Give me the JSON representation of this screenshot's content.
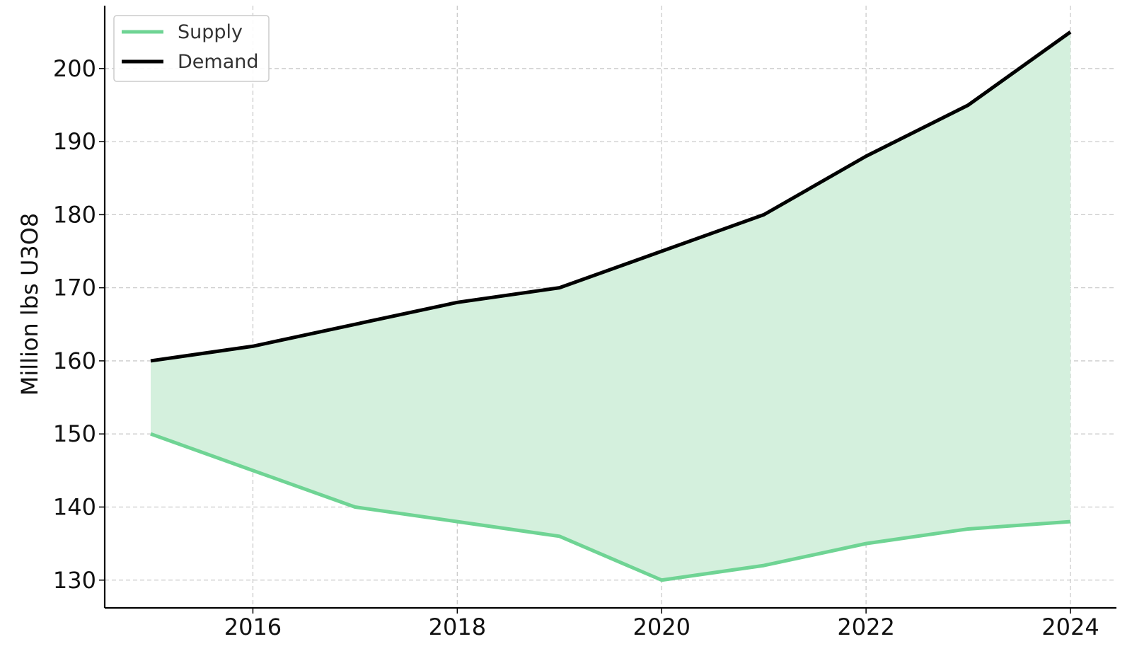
{
  "chart_data": {
    "type": "line",
    "title": "",
    "xlabel": "",
    "ylabel": "Million lbs U3O8",
    "x": [
      2015,
      2016,
      2017,
      2018,
      2019,
      2020,
      2021,
      2022,
      2023,
      2024
    ],
    "series": [
      {
        "name": "Supply",
        "values": [
          150,
          145,
          140,
          138,
          136,
          130,
          132,
          135,
          137,
          138
        ],
        "color": "#6fd494"
      },
      {
        "name": "Demand",
        "values": [
          160,
          162,
          165,
          168,
          170,
          175,
          180,
          188,
          195,
          205
        ],
        "color": "#000000"
      }
    ],
    "fill_between": {
      "series": [
        "Supply",
        "Demand"
      ],
      "color": "#d4f0dd"
    },
    "xlim": [
      2014.55,
      2024.45
    ],
    "ylim": [
      126.2,
      208.6
    ],
    "xticks": [
      2016,
      2018,
      2020,
      2022,
      2024
    ],
    "yticks": [
      130,
      140,
      150,
      160,
      170,
      180,
      190,
      200
    ],
    "grid": true,
    "legend": {
      "position": "top-left",
      "entries": [
        "Supply",
        "Demand"
      ]
    }
  }
}
